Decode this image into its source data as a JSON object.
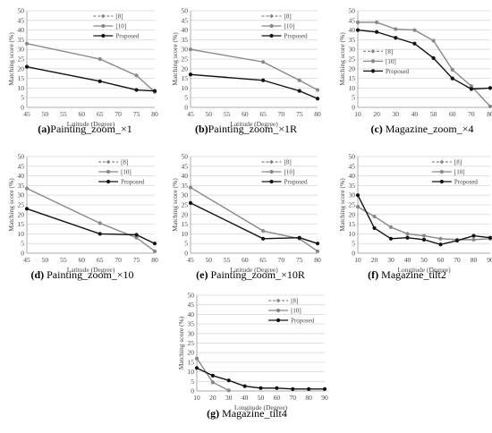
{
  "chart_data": [
    {
      "id": "a",
      "caption_label": "(a)",
      "caption_text": "Painting_zoom_×1",
      "type": "line",
      "ylabel": "Matching score (%)",
      "xlabel": "Latitude (Degree)",
      "xlim": [
        45,
        80
      ],
      "xticks": [
        45,
        50,
        55,
        60,
        65,
        70,
        75,
        80
      ],
      "ylim": [
        0,
        50
      ],
      "yticks": [
        0,
        5,
        10,
        15,
        20,
        25,
        30,
        35,
        40,
        45,
        50
      ],
      "grid": "horizontal",
      "legend": "top-center",
      "series": [
        {
          "name": "[8]",
          "color": "#888888",
          "dashed": true,
          "marker": "diamond",
          "x": [],
          "y": []
        },
        {
          "name": "[10]",
          "color": "#888888",
          "dashed": false,
          "marker": "circle",
          "x": [
            45,
            65,
            75,
            80
          ],
          "y": [
            33,
            25,
            16.5,
            8
          ]
        },
        {
          "name": "Proposed",
          "color": "#111111",
          "dashed": false,
          "marker": "circle",
          "x": [
            45,
            65,
            75,
            80
          ],
          "y": [
            21,
            13.5,
            9,
            8.5
          ]
        }
      ]
    },
    {
      "id": "b",
      "caption_label": "(b)",
      "caption_text": "Painting_zoom_×1R",
      "type": "line",
      "ylabel": "Matching score (%)",
      "xlabel": "Latitude (Degree)",
      "xlim": [
        45,
        80
      ],
      "xticks": [
        45,
        50,
        55,
        60,
        65,
        70,
        75,
        80
      ],
      "ylim": [
        0,
        50
      ],
      "yticks": [
        0,
        5,
        10,
        15,
        20,
        25,
        30,
        35,
        40,
        45,
        50
      ],
      "grid": "horizontal",
      "legend": "top-right",
      "series": [
        {
          "name": "[8]",
          "color": "#888888",
          "dashed": true,
          "marker": "diamond",
          "x": [],
          "y": []
        },
        {
          "name": "[10]",
          "color": "#888888",
          "dashed": false,
          "marker": "circle",
          "x": [
            45,
            65,
            75,
            80
          ],
          "y": [
            30,
            23.5,
            14,
            9
          ]
        },
        {
          "name": "Proposed",
          "color": "#111111",
          "dashed": false,
          "marker": "circle",
          "x": [
            45,
            65,
            75,
            80
          ],
          "y": [
            17,
            14,
            8.5,
            4.5
          ]
        }
      ]
    },
    {
      "id": "c",
      "caption_label": "(c)",
      "caption_text": " Magazine_zoom_×4",
      "type": "line",
      "ylabel": "Matching score (%)",
      "xlabel": "",
      "xlim": [
        10,
        80
      ],
      "xticks": [
        10,
        20,
        30,
        40,
        50,
        60,
        70,
        80
      ],
      "ylim": [
        0,
        50
      ],
      "yticks": [
        0,
        5,
        10,
        15,
        20,
        25,
        30,
        35,
        40,
        45,
        50
      ],
      "grid": "horizontal",
      "legend": "left-middle",
      "series": [
        {
          "name": "[8]",
          "color": "#888888",
          "dashed": true,
          "marker": "diamond",
          "x": [],
          "y": []
        },
        {
          "name": "[10]",
          "color": "#888888",
          "dashed": false,
          "marker": "circle",
          "x": [
            10,
            20,
            30,
            40,
            50,
            60,
            70,
            80
          ],
          "y": [
            44,
            44,
            40.5,
            40,
            34.5,
            19.5,
            11,
            0.5
          ]
        },
        {
          "name": "Proposed",
          "color": "#111111",
          "dashed": false,
          "marker": "circle",
          "x": [
            10,
            20,
            30,
            40,
            50,
            60,
            70,
            80
          ],
          "y": [
            40,
            39,
            36,
            33,
            25.5,
            15,
            9.5,
            10
          ]
        }
      ]
    },
    {
      "id": "d",
      "caption_label": "(d)",
      "caption_text": " Painting_zoom_×10",
      "type": "line",
      "ylabel": "Matching score (%)",
      "xlabel": "Latitude (Degree)",
      "xlim": [
        45,
        80
      ],
      "xticks": [
        45,
        50,
        55,
        60,
        65,
        70,
        75,
        80
      ],
      "ylim": [
        0,
        50
      ],
      "yticks": [
        0,
        5,
        10,
        15,
        20,
        25,
        30,
        35,
        40,
        45,
        50
      ],
      "grid": "horizontal",
      "legend": "top-right",
      "series": [
        {
          "name": "[8]",
          "color": "#888888",
          "dashed": true,
          "marker": "diamond",
          "x": [],
          "y": []
        },
        {
          "name": "[10]",
          "color": "#888888",
          "dashed": false,
          "marker": "circle",
          "x": [
            45,
            65,
            75,
            80
          ],
          "y": [
            33.5,
            15.5,
            8,
            1
          ]
        },
        {
          "name": "Proposed",
          "color": "#111111",
          "dashed": false,
          "marker": "circle",
          "x": [
            45,
            65,
            75,
            80
          ],
          "y": [
            23,
            10,
            9.5,
            5
          ]
        }
      ]
    },
    {
      "id": "e",
      "caption_label": "(e)",
      "caption_text": " Painting_zoom_×10R",
      "type": "line",
      "ylabel": "Matching score (%)",
      "xlabel": "Latitude (Degree)",
      "xlim": [
        45,
        80
      ],
      "xticks": [
        45,
        50,
        55,
        60,
        65,
        70,
        75,
        80
      ],
      "ylim": [
        0,
        50
      ],
      "yticks": [
        0,
        5,
        10,
        15,
        20,
        25,
        30,
        35,
        40,
        45,
        50
      ],
      "grid": "horizontal",
      "legend": "top-right",
      "series": [
        {
          "name": "[8]",
          "color": "#888888",
          "dashed": true,
          "marker": "diamond",
          "x": [],
          "y": []
        },
        {
          "name": "[10]",
          "color": "#888888",
          "dashed": false,
          "marker": "circle",
          "x": [
            45,
            65,
            75,
            80
          ],
          "y": [
            34,
            11.5,
            7.5,
            1
          ]
        },
        {
          "name": "Proposed",
          "color": "#111111",
          "dashed": false,
          "marker": "circle",
          "x": [
            45,
            65,
            75,
            80
          ],
          "y": [
            26,
            7.5,
            8,
            5
          ]
        }
      ]
    },
    {
      "id": "f",
      "caption_label": "(f)",
      "caption_text": " Magazine_tilt2",
      "type": "line",
      "ylabel": "Matching score (%)",
      "xlabel": "Longitude (Degree)",
      "xlim": [
        10,
        90
      ],
      "xticks": [
        10,
        20,
        30,
        40,
        50,
        60,
        70,
        80,
        90
      ],
      "ylim": [
        0,
        50
      ],
      "yticks": [
        0,
        5,
        10,
        15,
        20,
        25,
        30,
        35,
        40,
        45,
        50
      ],
      "grid": "horizontal",
      "legend": "top-right",
      "series": [
        {
          "name": "[8]",
          "color": "#888888",
          "dashed": true,
          "marker": "diamond",
          "x": [],
          "y": []
        },
        {
          "name": "[10]",
          "color": "#888888",
          "dashed": false,
          "marker": "circle",
          "x": [
            10,
            20,
            30,
            40,
            50,
            60,
            70,
            80,
            90
          ],
          "y": [
            24,
            19,
            13.5,
            10,
            9,
            7.5,
            7,
            7,
            7.5
          ]
        },
        {
          "name": "Proposed",
          "color": "#111111",
          "dashed": false,
          "marker": "circle",
          "x": [
            10,
            20,
            30,
            40,
            50,
            60,
            70,
            80,
            90
          ],
          "y": [
            30,
            13,
            7.5,
            8,
            7,
            4.5,
            6.5,
            9,
            8
          ]
        }
      ]
    },
    {
      "id": "g",
      "caption_label": "(g)",
      "caption_text": " Magazine_tilt4",
      "type": "line",
      "ylabel": "Matching score (%)",
      "xlabel": "Longitude (Degree)",
      "xlim": [
        10,
        90
      ],
      "xticks": [
        10,
        20,
        30,
        40,
        50,
        60,
        70,
        80,
        90
      ],
      "ylim": [
        0,
        50
      ],
      "yticks": [
        0,
        5,
        10,
        15,
        20,
        25,
        30,
        35,
        40,
        45,
        50
      ],
      "grid": "horizontal",
      "legend": "top-right",
      "series": [
        {
          "name": "[8]",
          "color": "#888888",
          "dashed": true,
          "marker": "diamond",
          "x": [],
          "y": []
        },
        {
          "name": "[10]",
          "color": "#888888",
          "dashed": false,
          "marker": "circle",
          "x": [
            10,
            20,
            30
          ],
          "y": [
            17,
            4.5,
            0.3
          ]
        },
        {
          "name": "Proposed",
          "color": "#111111",
          "dashed": false,
          "marker": "circle",
          "x": [
            10,
            20,
            30,
            40,
            50,
            60,
            70,
            80,
            90
          ],
          "y": [
            12,
            8,
            5.5,
            2.5,
            1.5,
            1.5,
            1,
            1,
            1
          ]
        }
      ]
    }
  ]
}
